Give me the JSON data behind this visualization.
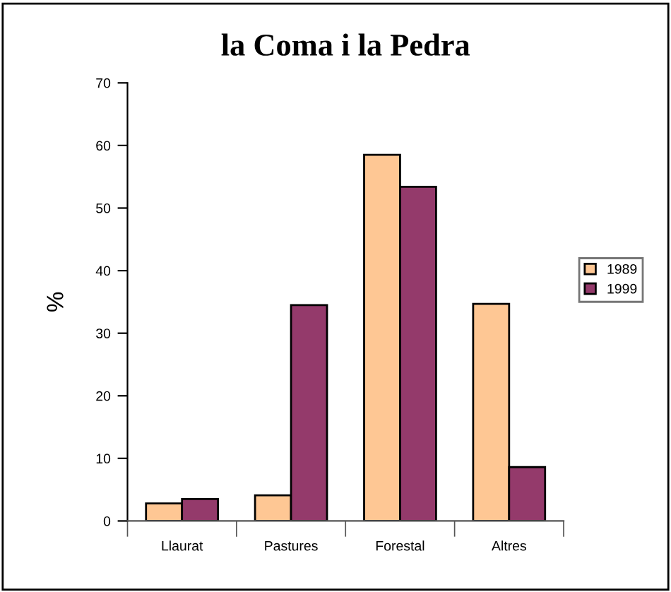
{
  "chart_data": {
    "type": "bar",
    "title": "la Coma i la Pedra",
    "ylabel": "%",
    "categories": [
      "Llaurat",
      "Pastures",
      "Forestal",
      "Altres"
    ],
    "series": [
      {
        "name": "1989",
        "color": "#fec794",
        "values": [
          2.8,
          4.1,
          58.5,
          34.7
        ]
      },
      {
        "name": "1999",
        "color": "#943a6b",
        "values": [
          3.5,
          34.5,
          53.4,
          8.6
        ]
      }
    ],
    "ylim": [
      0,
      70
    ],
    "yticks": [
      0,
      10,
      20,
      30,
      40,
      50,
      60,
      70
    ],
    "grid": false,
    "legend": "right"
  }
}
